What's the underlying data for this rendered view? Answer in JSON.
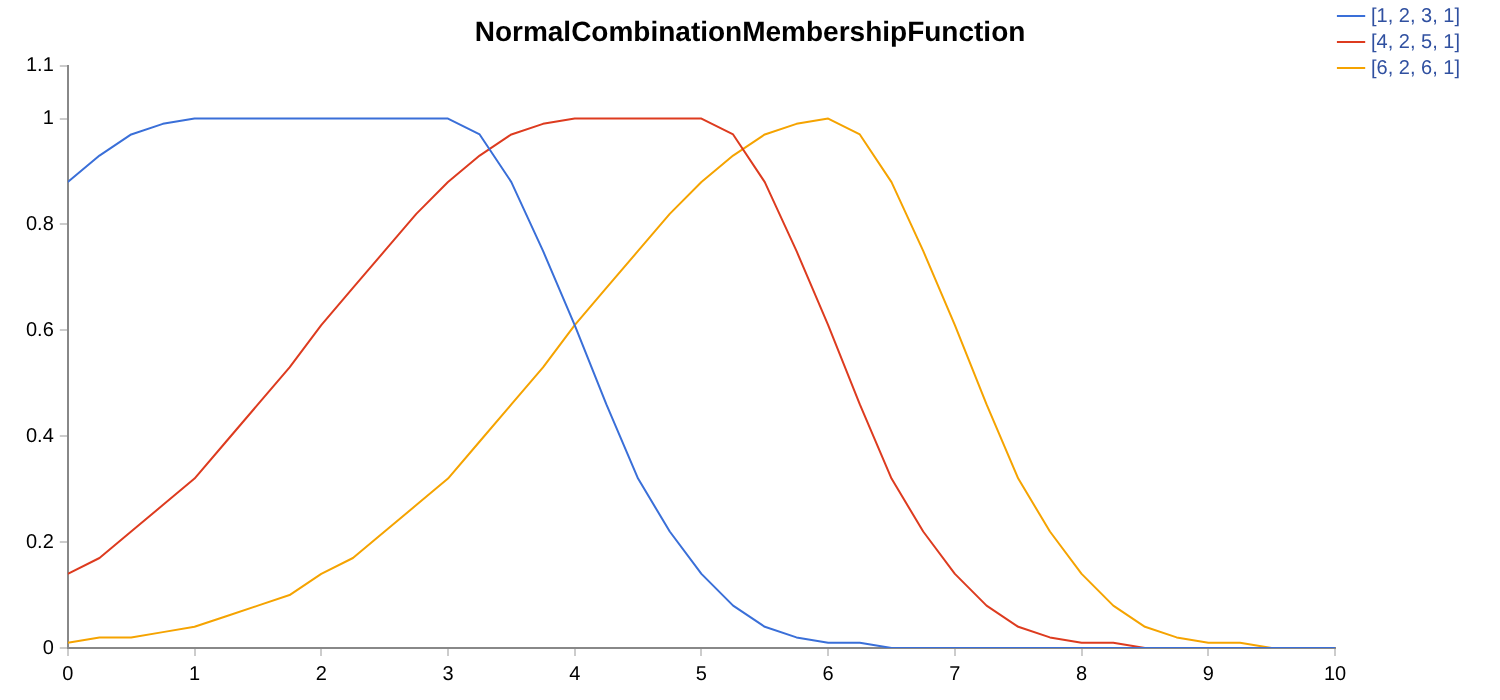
{
  "chart_data": {
    "type": "line",
    "title": "NormalCombinationMembershipFunction",
    "x": [
      0,
      0.25,
      0.5,
      0.75,
      1,
      1.25,
      1.5,
      1.75,
      2,
      2.25,
      2.5,
      2.75,
      3,
      3.25,
      3.5,
      3.75,
      4,
      4.25,
      4.5,
      4.75,
      5,
      5.25,
      5.5,
      5.75,
      6,
      6.25,
      6.5,
      6.75,
      7,
      7.25,
      7.5,
      7.75,
      8,
      8.25,
      8.5,
      8.75,
      9,
      9.25,
      9.5,
      9.75,
      10
    ],
    "series": [
      {
        "name": "[1, 2, 3, 1]",
        "color": "#3a6fd8",
        "values": [
          0.88,
          0.93,
          0.97,
          0.99,
          1,
          1,
          1,
          1,
          1,
          1,
          1,
          1,
          1,
          0.97,
          0.88,
          0.75,
          0.61,
          0.46,
          0.32,
          0.22,
          0.14,
          0.08,
          0.04,
          0.02,
          0.01,
          0.01,
          0,
          0,
          0,
          0,
          0,
          0,
          0,
          0,
          0,
          0,
          0,
          0,
          0,
          0,
          0
        ]
      },
      {
        "name": "[4, 2, 5, 1]",
        "color": "#dd3b1f",
        "values": [
          0.14,
          0.17,
          0.22,
          0.27,
          0.32,
          0.39,
          0.46,
          0.53,
          0.61,
          0.68,
          0.75,
          0.82,
          0.88,
          0.93,
          0.97,
          0.99,
          1,
          1,
          1,
          1,
          1,
          0.97,
          0.88,
          0.75,
          0.61,
          0.46,
          0.32,
          0.22,
          0.14,
          0.08,
          0.04,
          0.02,
          0.01,
          0.01,
          0,
          0,
          null,
          null,
          null,
          null,
          null
        ]
      },
      {
        "name": "[6, 2, 6, 1]",
        "color": "#f5a300",
        "values": [
          0.01,
          0.02,
          0.02,
          0.03,
          0.04,
          0.06,
          0.08,
          0.1,
          0.14,
          0.17,
          0.22,
          0.27,
          0.32,
          0.39,
          0.46,
          0.53,
          0.61,
          0.68,
          0.75,
          0.82,
          0.88,
          0.93,
          0.97,
          0.99,
          1,
          0.97,
          0.88,
          0.75,
          0.61,
          0.46,
          0.32,
          0.22,
          0.14,
          0.08,
          0.04,
          0.02,
          0.01,
          0.01,
          0,
          0,
          0
        ]
      }
    ],
    "xlim": [
      0,
      10
    ],
    "xticks": [
      0,
      1,
      2,
      3,
      4,
      5,
      6,
      7,
      8,
      9,
      10
    ],
    "ylim": [
      0,
      1.1
    ],
    "yticks": [
      0,
      0.2,
      0.4,
      0.6,
      0.8,
      1,
      1.1
    ],
    "grid": false,
    "legend": "top right",
    "marker": "none",
    "line_style": "solid"
  }
}
